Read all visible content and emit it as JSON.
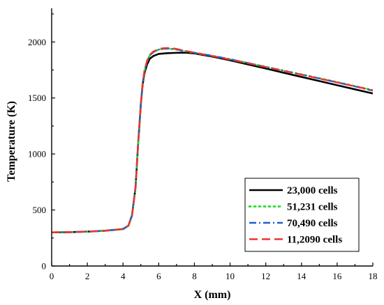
{
  "chart_data": {
    "type": "line",
    "xlabel": "X (mm)",
    "ylabel": "Temperature (K)",
    "xlim": [
      0,
      18
    ],
    "ylim": [
      0,
      2300
    ],
    "xticks": [
      0,
      2,
      4,
      6,
      8,
      10,
      12,
      14,
      16,
      18
    ],
    "yticks": [
      0,
      500,
      1000,
      1500,
      2000
    ],
    "grid": false,
    "legend_position": "bottom-right",
    "series": [
      {
        "name": "23,000 cells",
        "color": "#000000",
        "style": "solid",
        "x": [
          0,
          1,
          2,
          3,
          4,
          4.3,
          4.5,
          4.7,
          4.85,
          5.0,
          5.1,
          5.2,
          5.35,
          5.5,
          5.7,
          6.0,
          6.5,
          7.0,
          7.5,
          8,
          9,
          10,
          11,
          12,
          13,
          14,
          15,
          16,
          17,
          18
        ],
        "y": [
          300,
          302,
          307,
          315,
          330,
          360,
          450,
          700,
          1100,
          1450,
          1620,
          1720,
          1800,
          1850,
          1875,
          1893,
          1900,
          1903,
          1905,
          1898,
          1870,
          1836,
          1800,
          1763,
          1725,
          1688,
          1651,
          1614,
          1577,
          1540
        ]
      },
      {
        "name": "51,231 cells",
        "color": "#22dd22",
        "style": "dotted",
        "x": [
          0,
          1,
          2,
          3,
          4,
          4.3,
          4.5,
          4.7,
          4.85,
          5.0,
          5.1,
          5.2,
          5.35,
          5.5,
          5.7,
          6.0,
          6.3,
          6.6,
          7.0,
          7.5,
          8,
          9,
          10,
          11,
          12,
          13,
          14,
          15,
          16,
          17,
          18
        ],
        "y": [
          300,
          302,
          307,
          315,
          330,
          360,
          450,
          700,
          1100,
          1450,
          1630,
          1740,
          1830,
          1880,
          1910,
          1932,
          1940,
          1940,
          1932,
          1917,
          1903,
          1876,
          1845,
          1812,
          1778,
          1744,
          1710,
          1676,
          1641,
          1606,
          1570
        ]
      },
      {
        "name": "70,490 cells",
        "color": "#1f5fd6",
        "style": "dashdot",
        "x": [
          0,
          1,
          2,
          3,
          4,
          4.3,
          4.5,
          4.7,
          4.85,
          5.0,
          5.1,
          5.2,
          5.35,
          5.5,
          5.7,
          6.0,
          6.3,
          6.6,
          7.0,
          7.5,
          8,
          9,
          10,
          11,
          12,
          13,
          14,
          15,
          16,
          17,
          18
        ],
        "y": [
          300,
          302,
          307,
          315,
          330,
          360,
          450,
          700,
          1100,
          1450,
          1630,
          1740,
          1830,
          1880,
          1910,
          1932,
          1940,
          1941,
          1933,
          1918,
          1904,
          1877,
          1846,
          1812,
          1778,
          1743,
          1709,
          1674,
          1639,
          1603,
          1565
        ]
      },
      {
        "name": "11,2090 cells",
        "color": "#ee3333",
        "style": "dashed",
        "x": [
          0,
          1,
          2,
          3,
          4,
          4.3,
          4.5,
          4.7,
          4.85,
          5.0,
          5.1,
          5.2,
          5.35,
          5.5,
          5.7,
          6.0,
          6.3,
          6.6,
          7.0,
          7.5,
          8,
          9,
          10,
          11,
          12,
          13,
          14,
          15,
          16,
          17,
          18
        ],
        "y": [
          300,
          302,
          307,
          315,
          330,
          360,
          450,
          700,
          1100,
          1450,
          1630,
          1745,
          1835,
          1885,
          1915,
          1937,
          1945,
          1946,
          1938,
          1920,
          1905,
          1875,
          1843,
          1810,
          1776,
          1742,
          1708,
          1673,
          1639,
          1604,
          1568
        ]
      }
    ]
  }
}
